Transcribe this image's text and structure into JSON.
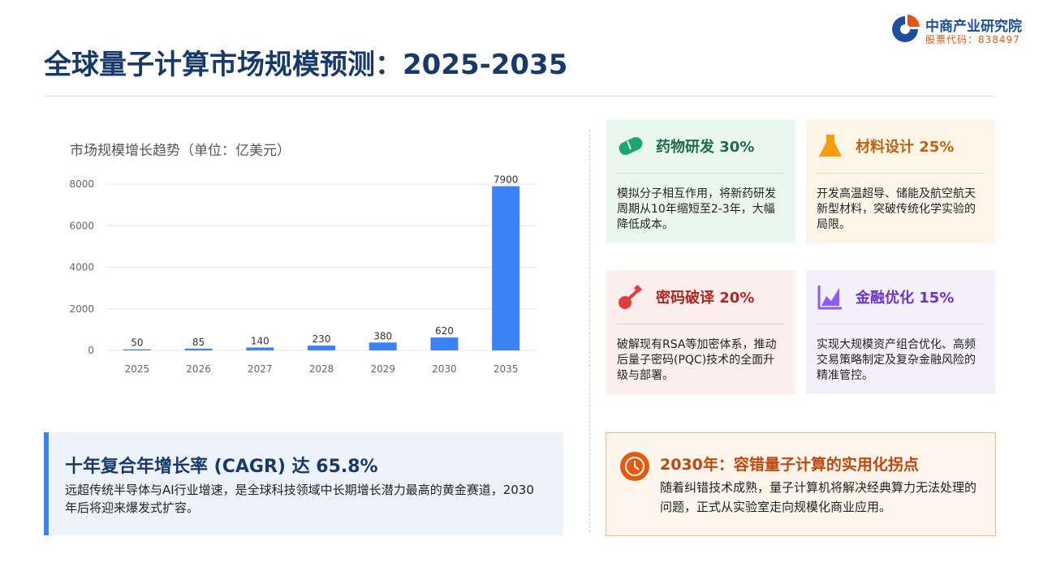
{
  "header": {
    "title": "全球量子计算市场规模预测：2025-2035",
    "logo": {
      "name": "中商产业研究院",
      "code": "股票代码：838497"
    }
  },
  "chart_data": {
    "type": "bar",
    "title": "市场规模增长趋势（单位：亿美元）",
    "categories": [
      "2025",
      "2026",
      "2027",
      "2028",
      "2029",
      "2030",
      "2035"
    ],
    "values": [
      50,
      85,
      140,
      230,
      380,
      620,
      7900
    ],
    "color": "#3b82f6",
    "ylim": [
      0,
      8000
    ],
    "yticks": [
      0,
      2000,
      4000,
      6000,
      8000
    ],
    "grid": true
  },
  "cagr": {
    "title": "十年复合年增长率 (CAGR) 达 65.8%",
    "text": "远超传统半导体与AI行业增速，是全球科技领域中长期增长潜力最高的黄金赛道，2030年后将迎来爆发式扩容。"
  },
  "cards": [
    {
      "title": "药物研发 30%",
      "text": "模拟分子相互作用，将新药研发周期从10年缩短至2-3年，大幅降低成本。"
    },
    {
      "title": "材料设计 25%",
      "text": "开发高温超导、储能及航空航天新型材料，突破传统化学实验的局限。"
    },
    {
      "title": "密码破译 20%",
      "text": "破解现有RSA等加密体系，推动后量子密码(PQC)技术的全面升级与部署。"
    },
    {
      "title": "金融优化 15%",
      "text": "实现大规模资产组合优化、高频交易策略制定及复杂金融风险的精准管控。"
    }
  ],
  "milestone": {
    "title": "2030年：容错量子计算的实用化拐点",
    "text": "随着纠错技术成熟，量子计算机将解决经典算力无法处理的问题，正式从实验室走向规模化商业应用。"
  }
}
